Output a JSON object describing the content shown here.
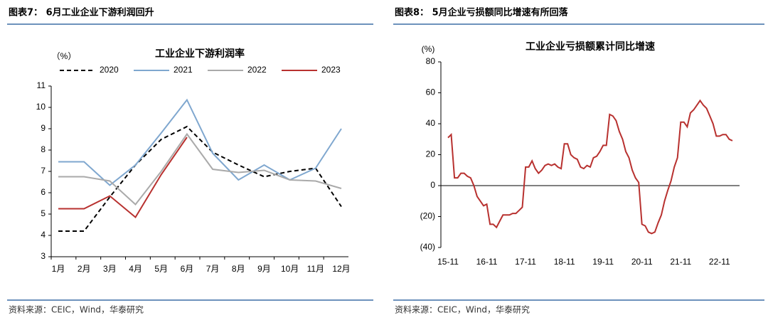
{
  "chart_data": [
    {
      "type": "line",
      "header": "图表7： 6月工业企业下游利润回升",
      "title": "工业企业下游利润率",
      "unit": "（%）",
      "categories": [
        "1月",
        "2月",
        "3月",
        "4月",
        "5月",
        "6月",
        "7月",
        "8月",
        "9月",
        "10月",
        "11月",
        "12月"
      ],
      "series": [
        {
          "name": "2020",
          "color": "#000000",
          "dash": true,
          "values": [
            4.2,
            4.2,
            5.8,
            7.3,
            8.5,
            9.1,
            7.9,
            7.3,
            6.75,
            7.0,
            7.15,
            5.35
          ]
        },
        {
          "name": "2021",
          "color": "#7fa7cf",
          "dash": false,
          "values": [
            7.45,
            7.45,
            6.35,
            7.3,
            8.8,
            10.35,
            7.85,
            6.6,
            7.3,
            6.6,
            7.15,
            9.0
          ]
        },
        {
          "name": "2022",
          "color": "#aaaaaa",
          "dash": false,
          "values": [
            6.75,
            6.75,
            6.55,
            5.45,
            7.0,
            8.75,
            7.1,
            6.95,
            7.05,
            6.6,
            6.55,
            6.2
          ]
        },
        {
          "name": "2023",
          "color": "#b8312f",
          "dash": false,
          "values": [
            5.25,
            5.25,
            5.85,
            4.85,
            6.85,
            8.6,
            null,
            null,
            null,
            null,
            null,
            null
          ]
        }
      ],
      "ylim": [
        3,
        11
      ],
      "yticks": [
        3,
        4,
        5,
        6,
        7,
        8,
        9,
        10,
        11
      ],
      "legend": "top",
      "source": "资料来源：CEIC，Wind，华泰研究"
    },
    {
      "type": "line",
      "header": "图表8： 5月企业亏损额同比增速有所回落",
      "title": "工业企业亏损额累计同比增速",
      "unit": "(%)",
      "categories": [
        "15-11",
        null,
        null,
        null,
        null,
        null,
        null,
        null,
        null,
        null,
        null,
        null,
        "16-11",
        null,
        null,
        null,
        null,
        null,
        null,
        null,
        null,
        null,
        null,
        null,
        "17-11",
        null,
        null,
        null,
        null,
        null,
        null,
        null,
        null,
        null,
        null,
        null,
        "18-11",
        null,
        null,
        null,
        null,
        null,
        null,
        null,
        null,
        null,
        null,
        null,
        "19-11",
        null,
        null,
        null,
        null,
        null,
        null,
        null,
        null,
        null,
        null,
        null,
        "20-11",
        null,
        null,
        null,
        null,
        null,
        null,
        null,
        null,
        null,
        null,
        null,
        "21-11",
        null,
        null,
        null,
        null,
        null,
        null,
        null,
        null,
        null,
        null,
        null,
        "22-11",
        null,
        null,
        null,
        null
      ],
      "series": [
        {
          "name": null,
          "color": "#b8312f",
          "dash": false,
          "values": [
            31,
            33,
            5,
            5,
            8,
            8,
            6,
            5,
            0,
            -7,
            -10,
            -13,
            -12,
            -25,
            -25,
            -27,
            -23,
            -19,
            -19,
            -19,
            -18,
            -18,
            -16,
            -14,
            12,
            12,
            16,
            11,
            8,
            10,
            13,
            14,
            13,
            14,
            12,
            11,
            27,
            27,
            20,
            18,
            17,
            12,
            11,
            13,
            12,
            18,
            19,
            22,
            26,
            26,
            46,
            45,
            42,
            35,
            30,
            22,
            18,
            10,
            5,
            2,
            -25,
            -26,
            -30,
            -31,
            -30,
            -24,
            -19,
            -10,
            -3,
            3,
            12,
            18,
            41,
            41,
            38,
            47,
            49,
            52,
            55,
            52,
            50,
            45,
            40,
            32,
            32,
            33,
            33,
            30,
            29
          ]
        }
      ],
      "ylim": [
        -40,
        80
      ],
      "yticks": [
        {
          "value": -40,
          "label": "(40)"
        },
        {
          "value": -20,
          "label": "(20)"
        },
        0,
        20,
        40,
        60,
        80
      ],
      "source": "资料来源：CEIC，Wind，华泰研究"
    }
  ]
}
